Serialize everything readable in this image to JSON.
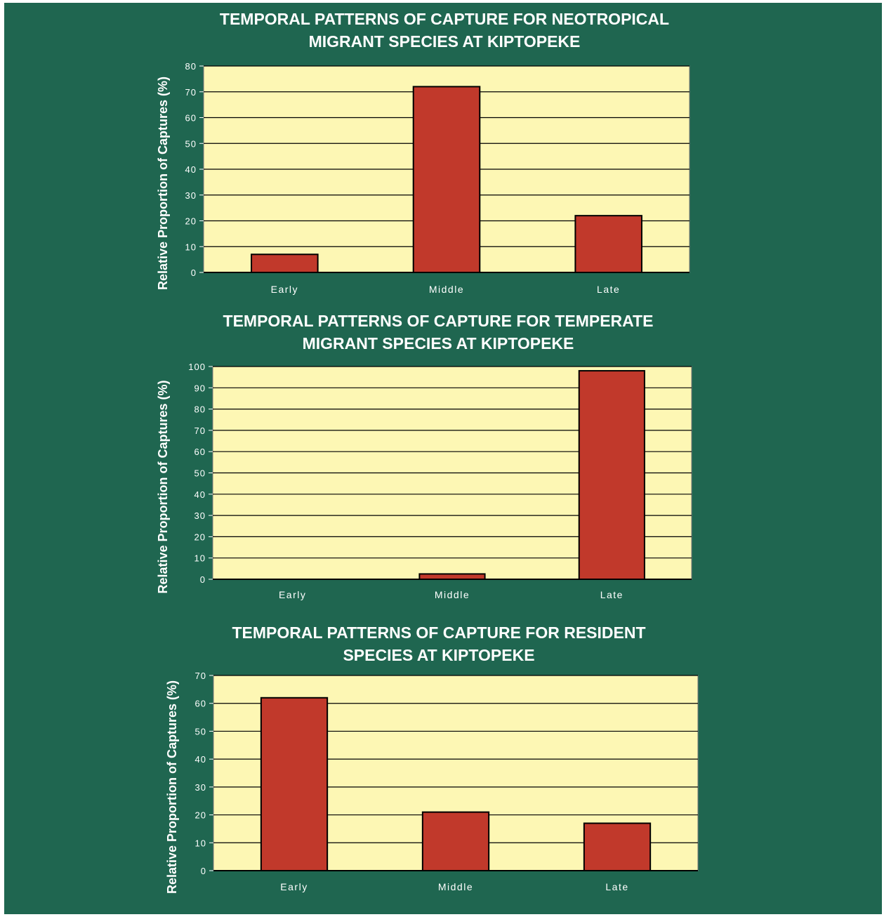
{
  "colors": {
    "background": "#1f6650",
    "plot_area": "#fdf7b4",
    "bar_fill": "#c1392b",
    "bar_stroke": "#000000",
    "text": "#ffffff"
  },
  "chart_data": [
    {
      "type": "bar",
      "title_lines": [
        "TEMPORAL PATTERNS OF CAPTURE FOR NEOTROPICAL",
        "MIGRANT SPECIES AT KIPTOPEKE"
      ],
      "xlabel": "",
      "ylabel": "Relative Proportion of Captures (%)",
      "categories": [
        "Early",
        "Middle",
        "Late"
      ],
      "values": [
        7,
        72,
        22
      ],
      "ylim": [
        0,
        80
      ],
      "yticks": [
        0,
        10,
        20,
        30,
        40,
        50,
        60,
        70,
        80
      ],
      "grid": true,
      "legend": "none"
    },
    {
      "type": "bar",
      "title_lines": [
        "TEMPORAL PATTERNS OF CAPTURE FOR TEMPERATE",
        "MIGRANT SPECIES AT KIPTOPEKE"
      ],
      "xlabel": "",
      "ylabel": "Relative Proportion of Captures (%)",
      "categories": [
        "Early",
        "Middle",
        "Late"
      ],
      "values": [
        0,
        2.5,
        98
      ],
      "ylim": [
        0,
        100
      ],
      "yticks": [
        0,
        10,
        20,
        30,
        40,
        50,
        60,
        70,
        80,
        90,
        100
      ],
      "grid": true,
      "legend": "none"
    },
    {
      "type": "bar",
      "title_lines": [
        "TEMPORAL PATTERNS OF CAPTURE FOR RESIDENT",
        "SPECIES AT KIPTOPEKE"
      ],
      "xlabel": "",
      "ylabel": "Relative Proportion of Captures (%)",
      "categories": [
        "Early",
        "Middle",
        "Late"
      ],
      "values": [
        62,
        21,
        17
      ],
      "ylim": [
        0,
        70
      ],
      "yticks": [
        0,
        10,
        20,
        30,
        40,
        50,
        60,
        70
      ],
      "grid": true,
      "legend": "none"
    }
  ]
}
